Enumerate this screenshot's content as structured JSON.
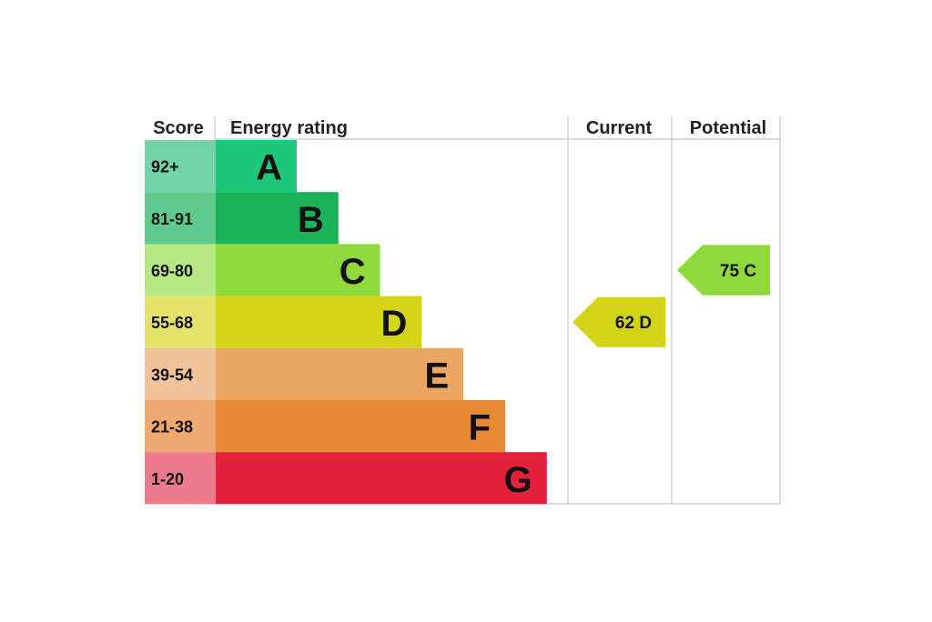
{
  "headers": {
    "score": "Score",
    "energy_rating": "Energy rating",
    "current": "Current",
    "potential": "Potential"
  },
  "chart_data": {
    "type": "bar",
    "bands": [
      {
        "letter": "A",
        "range": "92+",
        "bar_color": "#1ec87a",
        "score_color": "#72d4a7"
      },
      {
        "letter": "B",
        "range": "81-91",
        "bar_color": "#1bb35a",
        "score_color": "#5fcb8c"
      },
      {
        "letter": "C",
        "range": "69-80",
        "bar_color": "#8fd93f",
        "score_color": "#b8e884"
      },
      {
        "letter": "D",
        "range": "55-68",
        "bar_color": "#d3d416",
        "score_color": "#e5e46a"
      },
      {
        "letter": "E",
        "range": "39-54",
        "bar_color": "#eca563",
        "score_color": "#f2c39b"
      },
      {
        "letter": "F",
        "range": "21-38",
        "bar_color": "#e88934",
        "score_color": "#efa96f"
      },
      {
        "letter": "G",
        "range": "1-20",
        "bar_color": "#e2213b",
        "score_color": "#ec7a8c"
      }
    ],
    "current": {
      "value": 62,
      "letter": "D",
      "label": "62  D",
      "color": "#d3d416"
    },
    "potential": {
      "value": 75,
      "letter": "C",
      "label": "75  C",
      "color": "#8fd93f"
    }
  }
}
